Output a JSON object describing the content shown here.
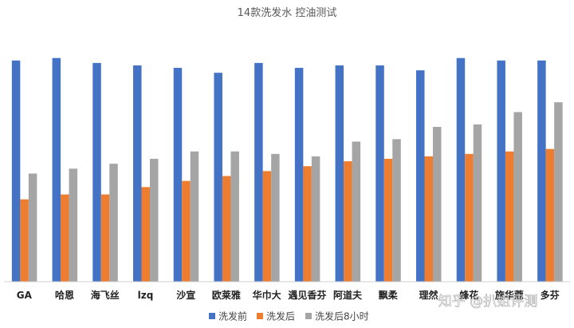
{
  "chart_data": {
    "type": "bar",
    "title": "14款洗发水 控油测试",
    "xlabel": "",
    "ylabel": "",
    "ylim": [
      0,
      100
    ],
    "grid": false,
    "legend_position": "bottom",
    "categories": [
      "GA",
      "哈恩",
      "海飞丝",
      "lzq",
      "沙宣",
      "欧莱雅",
      "华巾大",
      "遇见香芬",
      "阿道夫",
      "飘柔",
      "理然",
      "蜂花",
      "施华蔻",
      "多芬"
    ],
    "series": [
      {
        "name": "洗发前",
        "color": "#4472C4",
        "values": [
          90,
          91,
          89,
          88,
          87,
          85,
          89,
          87,
          88,
          88,
          86,
          91,
          90,
          90
        ]
      },
      {
        "name": "洗发后",
        "color": "#ED7D31",
        "values": [
          33.5,
          35.5,
          35.5,
          38.5,
          41,
          43,
          45,
          47,
          49,
          50,
          51,
          52,
          53,
          54
        ]
      },
      {
        "name": "洗发后8小时",
        "color": "#A5A5A5",
        "values": [
          44,
          46,
          48,
          50,
          53,
          53,
          52,
          51,
          57,
          58,
          63,
          64,
          69,
          73
        ]
      }
    ]
  },
  "watermark": "知乎 @扒姐评测"
}
